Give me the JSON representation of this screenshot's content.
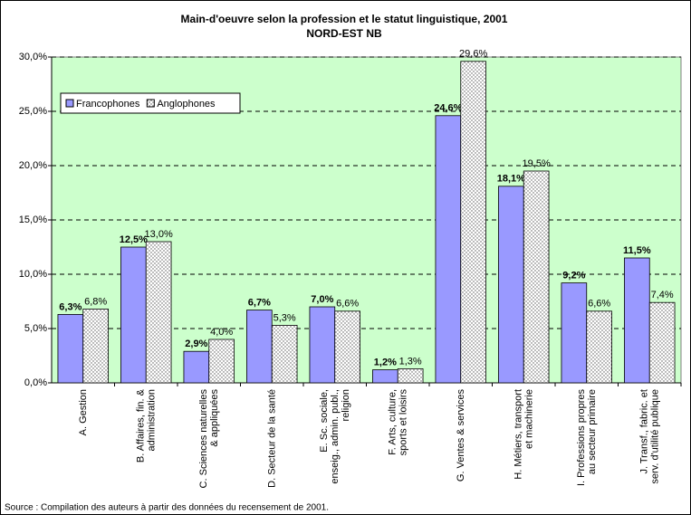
{
  "chart_data": {
    "type": "bar",
    "title": "Main-d'oeuvre selon la profession et le statut linguistique, 2001",
    "subtitle": "NORD-EST NB",
    "source": "Source : Compilation des auteurs à partir des données du recensement de 2001.",
    "categories": [
      "A. Gestion",
      "B. Affaires, fin. &\nadministration",
      "C. Sciences naturelles\n& appliquées",
      "D. Secteur de la santé",
      "E. Sc. sociale,\nenseig., admin. publ.,\nreligion",
      "F. Arts, culture,\nsports et loisirs",
      "G. Ventes & services",
      "H. Métiers, transport\net machinerie",
      "I. Professions propres\nau secteur primaire",
      "J. Transf., fabric. et\nserv. d'utilité publique"
    ],
    "series": [
      {
        "name": "Francophones",
        "color": "#9999ff",
        "values": [
          6.3,
          12.5,
          2.9,
          6.7,
          7.0,
          1.2,
          24.6,
          18.1,
          9.2,
          11.5
        ],
        "value_labels": [
          "6,3%",
          "12,5%",
          "2,9%",
          "6,7%",
          "7,0%",
          "1,2%",
          "24,6%",
          "18,1%",
          "9,2%",
          "11,5%"
        ]
      },
      {
        "name": "Anglophones",
        "color": "#ffffff",
        "pattern": "dots",
        "values": [
          6.8,
          13.0,
          4.0,
          5.3,
          6.6,
          1.3,
          29.6,
          19.5,
          6.6,
          7.4
        ],
        "value_labels": [
          "6,8%",
          "13,0%",
          "4,0%",
          "5,3%",
          "6,6%",
          "1,3%",
          "29,6%",
          "19,5%",
          "6,6%",
          "7,4%"
        ]
      }
    ],
    "ylim": [
      0,
      30
    ],
    "yticks": [
      {
        "value": 0,
        "label": "0,0%"
      },
      {
        "value": 5,
        "label": "5,0%"
      },
      {
        "value": 10,
        "label": "10,0%"
      },
      {
        "value": 15,
        "label": "15,0%"
      },
      {
        "value": 20,
        "label": "20,0%"
      },
      {
        "value": 25,
        "label": "25,0%"
      },
      {
        "value": 30,
        "label": "30,0%"
      }
    ],
    "grid": true,
    "plot_background": "#ccffcc",
    "legend": "upper left"
  }
}
